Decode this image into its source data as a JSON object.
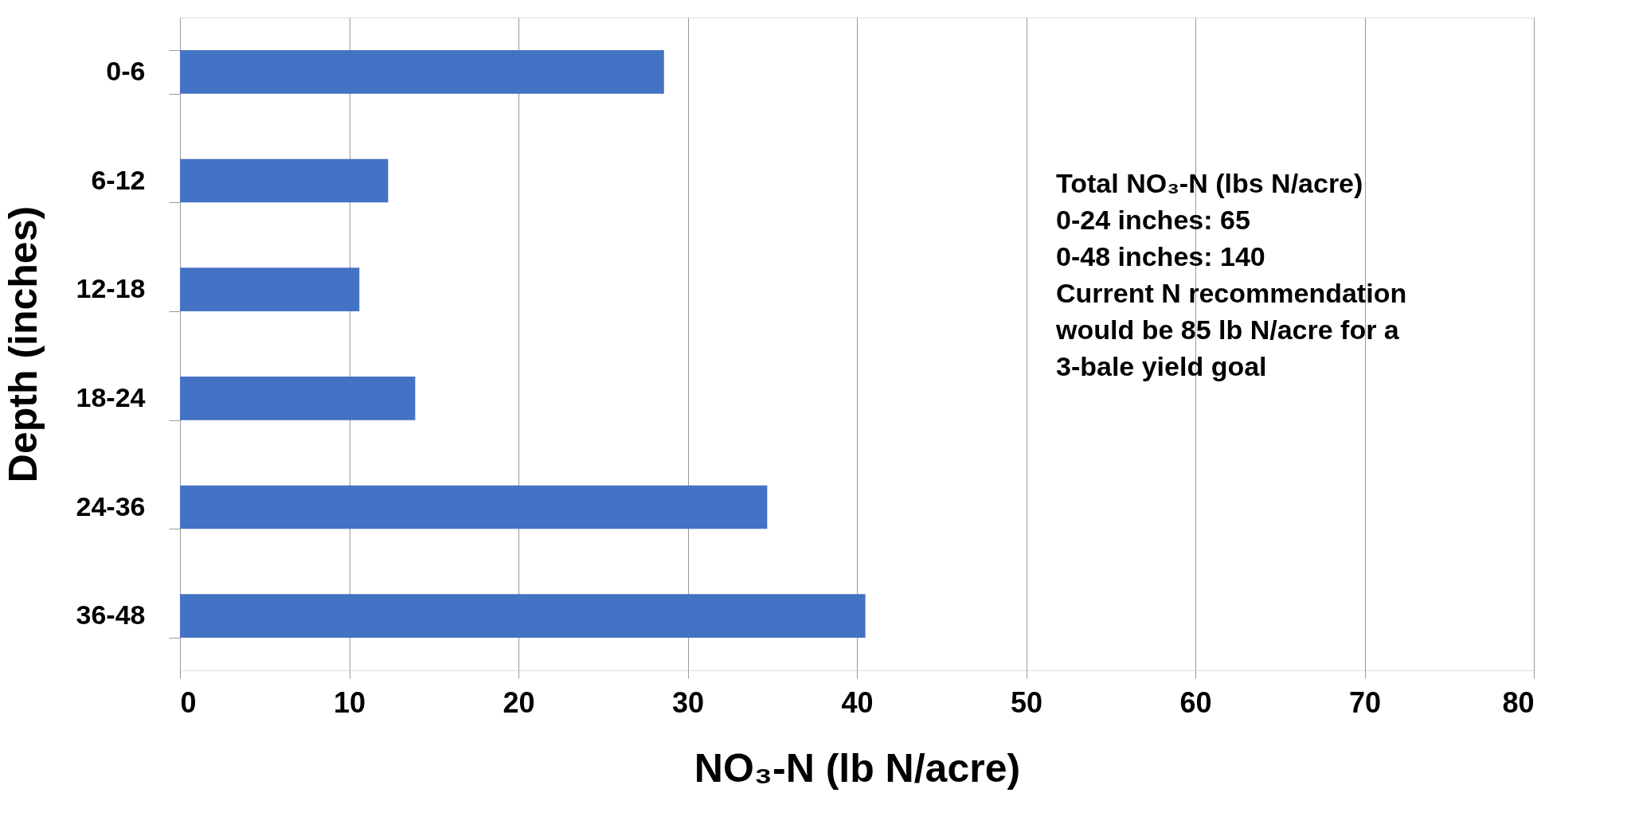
{
  "chart_data": {
    "type": "bar",
    "orientation": "horizontal",
    "xlabel": "NO₃-N (lb N/acre)",
    "ylabel": "Depth (inches)",
    "categories": [
      "0-6",
      "6-12",
      "12-18",
      "18-24",
      "24-36",
      "36-48"
    ],
    "values": [
      28.6,
      12.3,
      10.6,
      13.9,
      34.7,
      40.5
    ],
    "color": "#4472c4",
    "xlim": [
      0,
      80
    ],
    "xticks": [
      0,
      10,
      20,
      30,
      40,
      50,
      60,
      70,
      80
    ],
    "grid": "x",
    "annotations": [
      "Total NO₃-N (lbs N/acre)",
      "0-24 inches:  65",
      "0-48 inches:  140",
      "Current N recommendation",
      "would be 85 lb N/acre for a",
      "3-bale yield goal"
    ]
  }
}
